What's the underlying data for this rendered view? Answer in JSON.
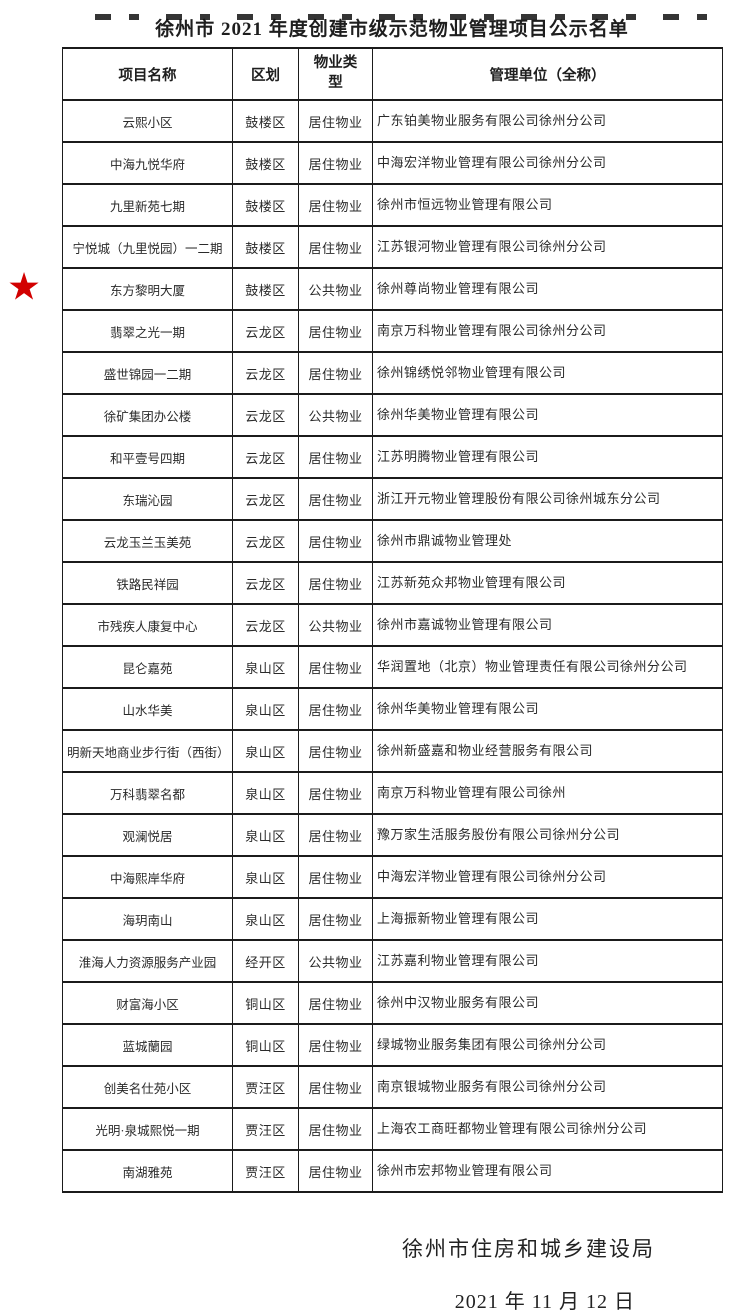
{
  "title": "徐州市 2021 年度创建市级示范物业管理项目公示名单",
  "icons": {
    "star": "★"
  },
  "colors": {
    "star": "#d20000",
    "border": "#1b1b1b",
    "text": "#2a2a2a"
  },
  "table": {
    "headers": [
      "项目名称",
      "区划",
      "物业类型",
      "管理单位（全称）"
    ],
    "rows": [
      {
        "name": "云熙小区",
        "district": "鼓楼区",
        "type": "居住物业",
        "company": "广东铂美物业服务有限公司徐州分公司",
        "starred": false
      },
      {
        "name": "中海九悦华府",
        "district": "鼓楼区",
        "type": "居住物业",
        "company": "中海宏洋物业管理有限公司徐州分公司",
        "starred": false
      },
      {
        "name": "九里新苑七期",
        "district": "鼓楼区",
        "type": "居住物业",
        "company": "徐州市恒远物业管理有限公司",
        "starred": false
      },
      {
        "name": "宁悦城（九里悦园）一二期",
        "district": "鼓楼区",
        "type": "居住物业",
        "company": "江苏银河物业管理有限公司徐州分公司",
        "starred": false
      },
      {
        "name": "东方黎明大厦",
        "district": "鼓楼区",
        "type": "公共物业",
        "company": "徐州尊尚物业管理有限公司",
        "starred": true
      },
      {
        "name": "翡翠之光一期",
        "district": "云龙区",
        "type": "居住物业",
        "company": "南京万科物业管理有限公司徐州分公司",
        "starred": false
      },
      {
        "name": "盛世锦园一二期",
        "district": "云龙区",
        "type": "居住物业",
        "company": "徐州锦绣悦邻物业管理有限公司",
        "starred": false
      },
      {
        "name": "徐矿集团办公楼",
        "district": "云龙区",
        "type": "公共物业",
        "company": "徐州华美物业管理有限公司",
        "starred": false
      },
      {
        "name": "和平壹号四期",
        "district": "云龙区",
        "type": "居住物业",
        "company": "江苏明腾物业管理有限公司",
        "starred": false
      },
      {
        "name": "东瑞沁园",
        "district": "云龙区",
        "type": "居住物业",
        "company": "浙江开元物业管理股份有限公司徐州城东分公司",
        "starred": false
      },
      {
        "name": "云龙玉兰玉美苑",
        "district": "云龙区",
        "type": "居住物业",
        "company": "徐州市鼎诚物业管理处",
        "starred": false
      },
      {
        "name": "铁路民祥园",
        "district": "云龙区",
        "type": "居住物业",
        "company": "江苏新苑众邦物业管理有限公司",
        "starred": false
      },
      {
        "name": "市残疾人康复中心",
        "district": "云龙区",
        "type": "公共物业",
        "company": "徐州市嘉诚物业管理有限公司",
        "starred": false
      },
      {
        "name": "昆仑嘉苑",
        "district": "泉山区",
        "type": "居住物业",
        "company": "华润置地（北京）物业管理责任有限公司徐州分公司",
        "starred": false
      },
      {
        "name": "山水华美",
        "district": "泉山区",
        "type": "居住物业",
        "company": "徐州华美物业管理有限公司",
        "starred": false
      },
      {
        "name": "明新天地商业步行街（西街）",
        "district": "泉山区",
        "type": "居住物业",
        "company": "徐州新盛嘉和物业经营服务有限公司",
        "starred": false
      },
      {
        "name": "万科翡翠名都",
        "district": "泉山区",
        "type": "居住物业",
        "company": "南京万科物业管理有限公司徐州",
        "starred": false
      },
      {
        "name": "观澜悦居",
        "district": "泉山区",
        "type": "居住物业",
        "company": "豫万家生活服务股份有限公司徐州分公司",
        "starred": false
      },
      {
        "name": "中海熙岸华府",
        "district": "泉山区",
        "type": "居住物业",
        "company": "中海宏洋物业管理有限公司徐州分公司",
        "starred": false
      },
      {
        "name": "海玥南山",
        "district": "泉山区",
        "type": "居住物业",
        "company": "上海振新物业管理有限公司",
        "starred": false
      },
      {
        "name": "淮海人力资源服务产业园",
        "district": "经开区",
        "type": "公共物业",
        "company": "江苏嘉利物业管理有限公司",
        "starred": false
      },
      {
        "name": "财富海小区",
        "district": "铜山区",
        "type": "居住物业",
        "company": "徐州中汉物业服务有限公司",
        "starred": false
      },
      {
        "name": "蓝城蘭园",
        "district": "铜山区",
        "type": "居住物业",
        "company": "绿城物业服务集团有限公司徐州分公司",
        "starred": false
      },
      {
        "name": "创美名仕苑小区",
        "district": "贾汪区",
        "type": "居住物业",
        "company": "南京银城物业服务有限公司徐州分公司",
        "starred": false
      },
      {
        "name": "光明·泉城熙悦一期",
        "district": "贾汪区",
        "type": "居住物业",
        "company": "上海农工商旺都物业管理有限公司徐州分公司",
        "starred": false
      },
      {
        "name": "南湖雅苑",
        "district": "贾汪区",
        "type": "居住物业",
        "company": "徐州市宏邦物业管理有限公司",
        "starred": false
      }
    ]
  },
  "footer": {
    "org": "徐州市住房和城乡建设局",
    "date": "2021 年 11 月 12 日"
  }
}
